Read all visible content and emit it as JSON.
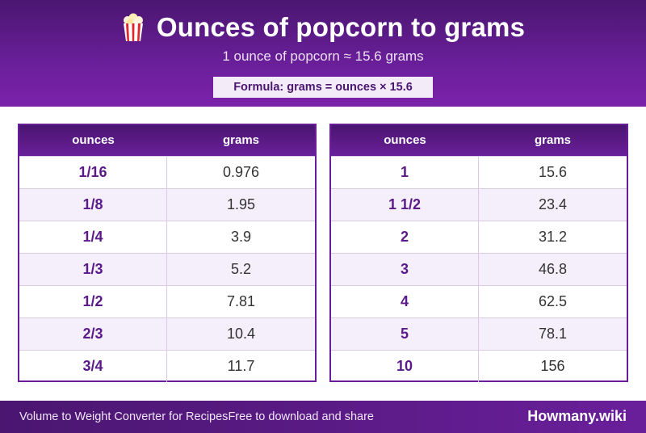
{
  "header": {
    "title": "Ounces of popcorn to grams",
    "icon": "popcorn-icon",
    "subtitle": "1 ounce of popcorn ≈ 15.6 grams",
    "formula": "Formula: grams = ounces × 15.6"
  },
  "tables": {
    "left": {
      "col_ounces": "ounces",
      "col_grams": "grams",
      "rows": [
        {
          "oz": "1/16",
          "g": "0.976"
        },
        {
          "oz": "1/8",
          "g": "1.95"
        },
        {
          "oz": "1/4",
          "g": "3.9"
        },
        {
          "oz": "1/3",
          "g": "5.2"
        },
        {
          "oz": "1/2",
          "g": "7.81"
        },
        {
          "oz": "2/3",
          "g": "10.4"
        },
        {
          "oz": "3/4",
          "g": "11.7"
        }
      ]
    },
    "right": {
      "col_ounces": "ounces",
      "col_grams": "grams",
      "rows": [
        {
          "oz": "1",
          "g": "15.6"
        },
        {
          "oz": "1 1/2",
          "g": "23.4"
        },
        {
          "oz": "2",
          "g": "31.2"
        },
        {
          "oz": "3",
          "g": "46.8"
        },
        {
          "oz": "4",
          "g": "62.5"
        },
        {
          "oz": "5",
          "g": "78.1"
        },
        {
          "oz": "10",
          "g": "156"
        }
      ]
    }
  },
  "footer": {
    "left_text": "Volume to Weight Converter for Recipes",
    "middle_text": "Free to download and share",
    "brand": "Howmany.wiki"
  },
  "colors": {
    "accent": "#6a1f9a",
    "dark_accent": "#4a1670",
    "row_alt": "#f4effa"
  }
}
